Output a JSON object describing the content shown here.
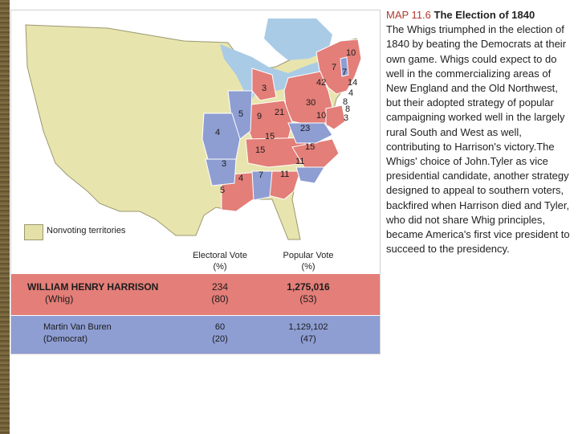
{
  "caption": {
    "map_number": "MAP 11.6",
    "title": "The Election of 1840",
    "body": "The Whigs triumphed in the election of 1840 by beating the Democrats at their own game. Whigs could expect to do well in the commercializing areas of New England and the Old Northwest, but their adopted strategy of popular campaigning worked well in the largely rural South and West as well, contributing to Harrison's victory.The Whigs' choice of John.Tyler as vice presidential candidate, another strategy designed to appeal to southern voters, backfired when Harrison died and Tyler, who did not share Whig principles, became America's first vice president to succeed to the presidency."
  },
  "legend": {
    "nonvoting_label": "Nonvoting territories",
    "nonvoting_color": "#e4e0a8"
  },
  "colors": {
    "whig": "#e37e78",
    "democrat": "#8e9dd2",
    "water": "#a9cbe6",
    "land": "#e8e4ae"
  },
  "table": {
    "electoral_header": "Electoral Vote",
    "popular_header": "Popular Vote",
    "pct": "(%)",
    "rows": [
      {
        "candidate": "WILLIAM HENRY HARRISON",
        "party": "(Whig)",
        "electoral": "234",
        "electoral_pct": "(80)",
        "popular": "1,275,016",
        "popular_pct": "(53)"
      },
      {
        "candidate": "Martin Van Buren",
        "party": "(Democrat)",
        "electoral": "60",
        "electoral_pct": "(20)",
        "popular": "1,129,102",
        "popular_pct": "(47)"
      }
    ]
  },
  "state_votes": {
    "me": "10",
    "vt": "7",
    "nh": "7",
    "ma": "14",
    "ri": "4",
    "ct": "8",
    "ny": "42",
    "nj": "8",
    "de": "3",
    "pa": "30",
    "md": "10",
    "oh": "21",
    "mi": "3",
    "in": "9",
    "il": "5",
    "mo": "4",
    "ky": "15",
    "va": "23",
    "nc": "15",
    "tn": "15",
    "sc": "11",
    "ga": "11",
    "al": "7",
    "ms": "4",
    "la": "5",
    "ar": "3"
  }
}
